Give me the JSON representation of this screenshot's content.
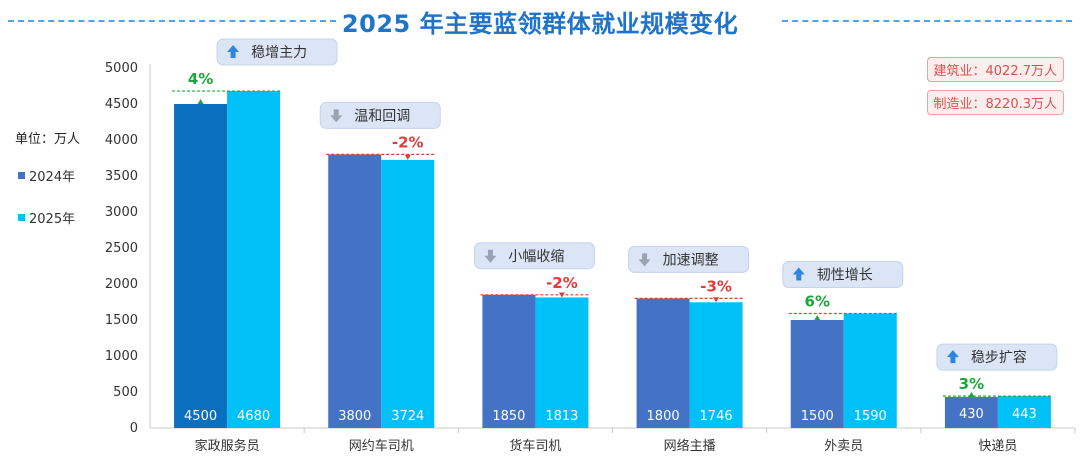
{
  "title": "2025 年主要蓝领群体就业规模变化",
  "unit_label": "单位：万人",
  "notes": [
    "建筑业：4022.7万人",
    "制造业：8220.3万人"
  ],
  "colors": {
    "series_2024": "#4472c4",
    "series_2024_first": "#0b6fc0",
    "series_2025": "#00c0f8",
    "up_pct": "#1aa83a",
    "down_pct": "#e23b3b",
    "tag_bg": "#dbe5f5",
    "title": "#1f73c9"
  },
  "chart_data": {
    "type": "bar",
    "categories": [
      "家政服务员",
      "网约车司机",
      "货车司机",
      "网络主播",
      "外卖员",
      "快递员"
    ],
    "series": [
      {
        "name": "2024年",
        "values": [
          4500,
          3800,
          1850,
          1800,
          1500,
          430
        ]
      },
      {
        "name": "2025年",
        "values": [
          4680,
          3724,
          1813,
          1746,
          1590,
          443
        ]
      }
    ],
    "ylim": [
      0,
      5000
    ],
    "yticks": [
      0,
      500,
      1000,
      1500,
      2000,
      2500,
      3000,
      3500,
      4000,
      4500,
      5000
    ],
    "change_pct": [
      "4%",
      "-2%",
      "-2%",
      "-3%",
      "6%",
      "3%"
    ],
    "trend_tags": [
      {
        "label": "稳增主力",
        "direction": "up"
      },
      {
        "label": "温和回调",
        "direction": "down"
      },
      {
        "label": "小幅收缩",
        "direction": "down"
      },
      {
        "label": "加速调整",
        "direction": "down"
      },
      {
        "label": "韧性增长",
        "direction": "up"
      },
      {
        "label": "稳步扩容",
        "direction": "up"
      }
    ],
    "legend_position": "left",
    "grid": false
  }
}
